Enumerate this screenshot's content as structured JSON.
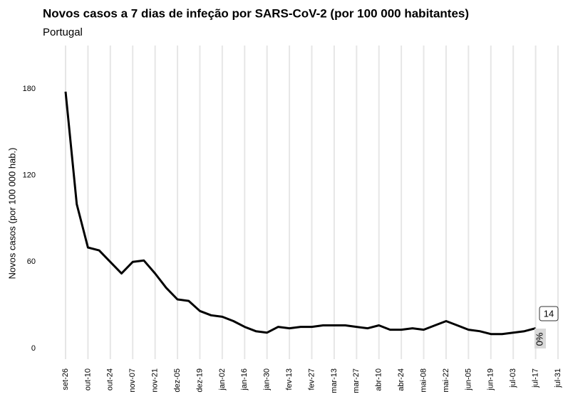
{
  "chart_data": {
    "type": "line",
    "title": "Novos casos a 7 dias de infeção por SARS-CoV-2 (por 100 000 habitantes)",
    "subtitle": "Portugal",
    "y_label": "Novos casos (por 100 000 hab.)",
    "categories": [
      "set-26",
      null,
      "out-10",
      null,
      "out-24",
      null,
      "nov-07",
      null,
      "nov-21",
      null,
      "dez-05",
      null,
      "dez-19",
      null,
      "jan-02",
      null,
      "jan-16",
      null,
      "jan-30",
      null,
      "fev-13",
      null,
      "fev-27",
      null,
      "mar-13",
      null,
      "mar-27",
      null,
      "abr-10",
      null,
      "abr-24",
      null,
      "mai-08",
      null,
      "mai-22",
      null,
      "jun-05",
      null,
      "jun-19",
      null,
      "jul-03",
      null,
      "jul-17",
      null,
      "jul-31"
    ],
    "series": [
      {
        "name": "Portugal",
        "color": "#000000",
        "values": [
          178,
          100,
          70,
          68,
          60,
          52,
          60,
          61,
          52,
          42,
          34,
          33,
          26,
          23,
          22,
          19,
          15,
          12,
          11,
          15,
          14,
          15,
          15,
          16,
          16,
          16,
          15,
          14,
          16,
          13,
          13,
          14,
          13,
          16,
          19,
          16,
          13,
          12,
          10,
          10,
          11,
          12,
          14,
          null,
          null
        ]
      }
    ],
    "annotations": [
      "14",
      "0%"
    ],
    "ylim": [
      0,
      210
    ],
    "yticks": [
      0,
      60,
      120,
      180
    ],
    "grid": true
  }
}
